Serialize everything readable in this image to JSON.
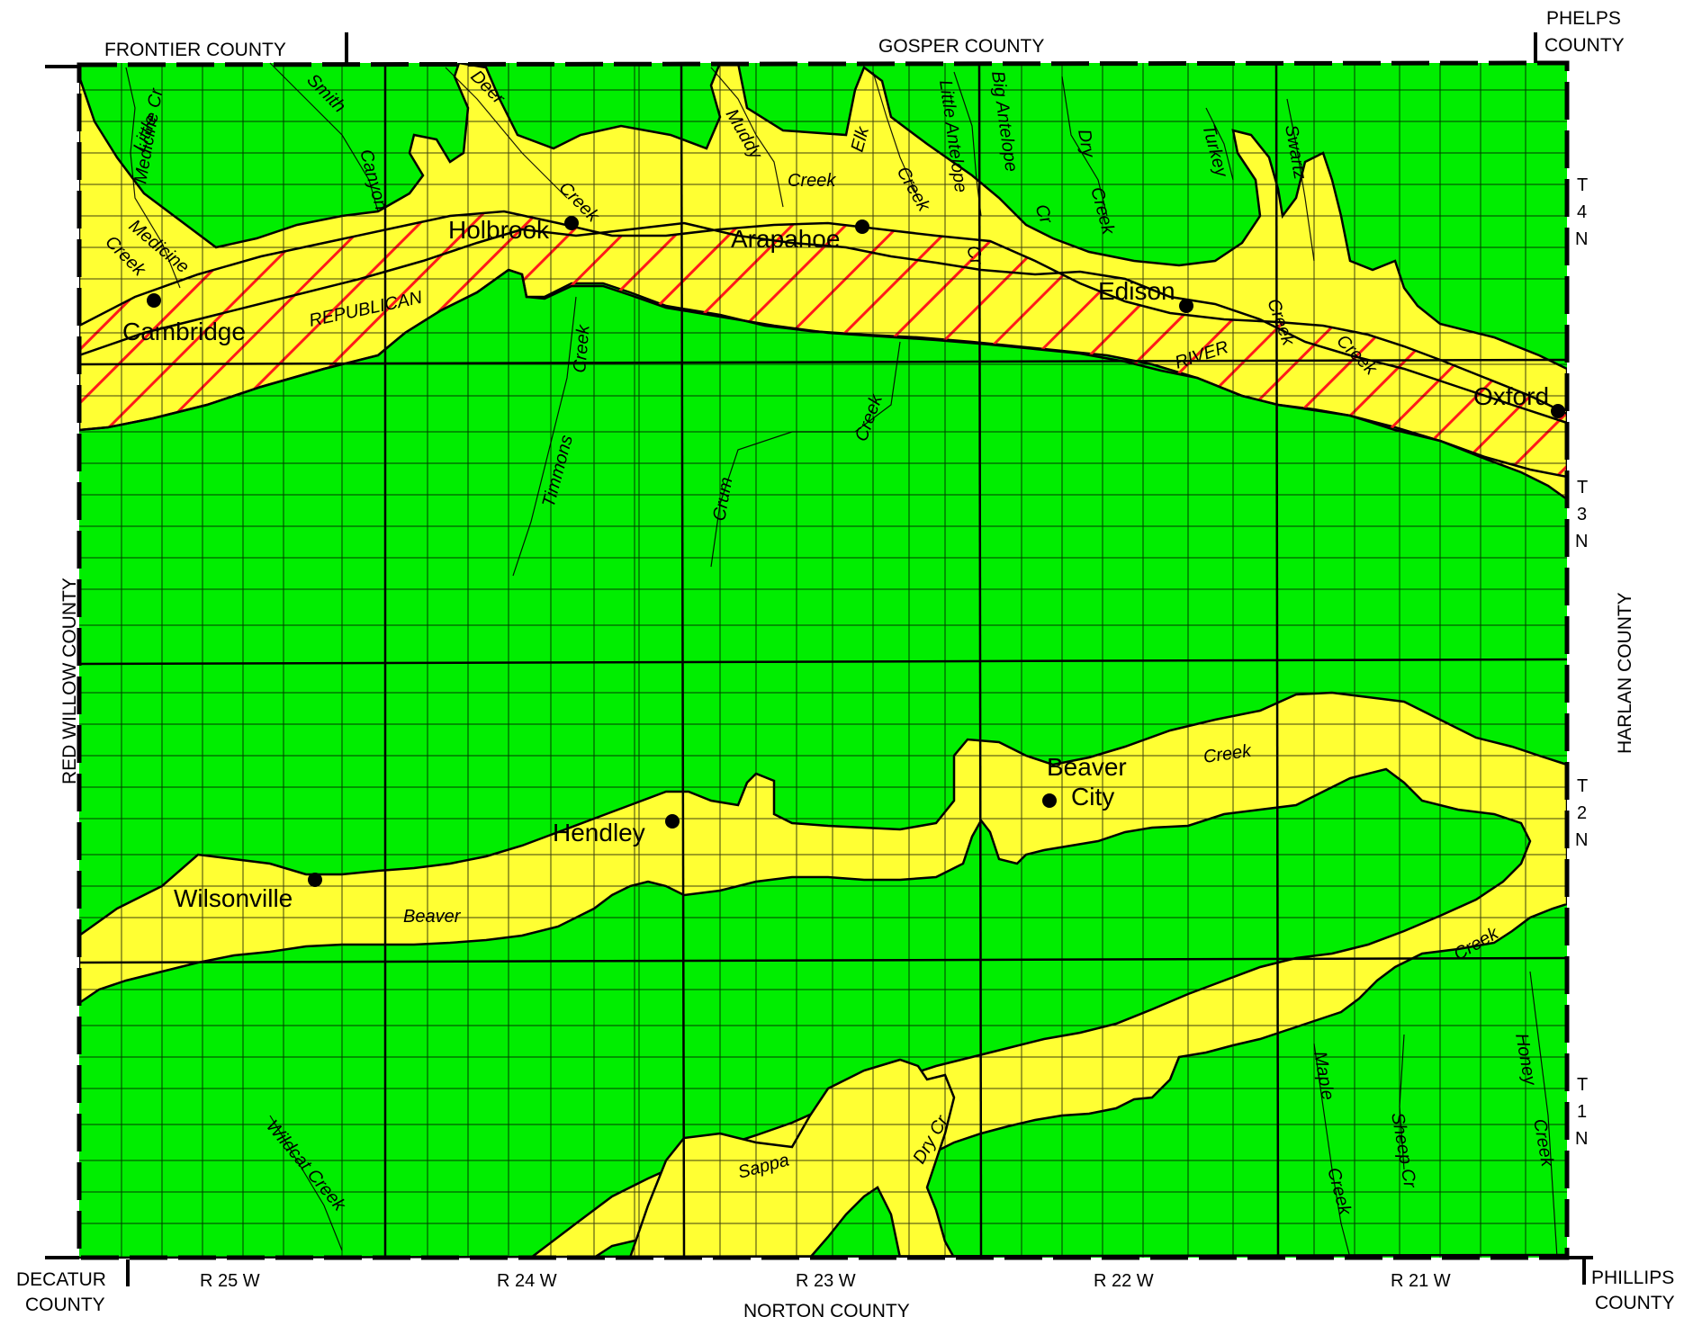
{
  "colors": {
    "upland": "#00ee00",
    "valley": "#ffff33",
    "hatch": "#ff1a1a",
    "line": "#000000",
    "background": "#ffffff"
  },
  "counties": {
    "frontier": "FRONTIER COUNTY",
    "gosper": "GOSPER COUNTY",
    "phelps_1": "PHELPS",
    "phelps_2": "COUNTY",
    "red_willow": "RED WILLOW COUNTY",
    "harlan": "HARLAN COUNTY",
    "decatur_1": "DECATUR",
    "decatur_2": "COUNTY",
    "norton": "NORTON COUNTY",
    "phillips_1": "PHILLIPS",
    "phillips_2": "COUNTY"
  },
  "towns": {
    "cambridge": "Cambridge",
    "holbrook": "Holbrook",
    "arapahoe": "Arapahoe",
    "edison": "Edison",
    "oxford": "Oxford",
    "beaver_city_1": "Beaver",
    "beaver_city_2": "City",
    "hendley": "Hendley",
    "wilsonville": "Wilsonville"
  },
  "ranges": [
    "R 25 W",
    "R 24 W",
    "R 23 W",
    "R 22 W",
    "R 21 W"
  ],
  "townships": {
    "t4n": [
      "T",
      "4",
      "N"
    ],
    "t3n": [
      "T",
      "3",
      "N"
    ],
    "t2n": [
      "T",
      "2",
      "N"
    ],
    "t1n": [
      "T",
      "1",
      "N"
    ]
  },
  "streams": {
    "little": "Little",
    "medicine_cr": "Medicine Cr",
    "medicine": "Medicine",
    "creek_cambridge": "Creek",
    "smith": "Smith",
    "canyon": "Canyon",
    "deer": "Deer",
    "creek_deer": "Creek",
    "muddy": "Muddy",
    "creek_muddy": "Creek",
    "elk": "Elk",
    "creek_elk": "Creek",
    "little_antelope": "Little Antelope",
    "cr_little_antelope": "Cr",
    "big_antelope": "Big Antelope",
    "cr_big_antelope": "Cr",
    "dry": "Dry",
    "creek_dry": "Creek",
    "turkey": "Turkey",
    "swartz": "Swartz",
    "creek_turkey": "Creek",
    "creek_swartz": "Creek",
    "republican": "REPUBLICAN",
    "river": "RIVER",
    "timmons": "Timmons",
    "creek_timmons": "Creek",
    "crum": "Crum",
    "creek_crum": "Creek",
    "beaver": "Beaver",
    "creek_beaver_1": "Creek",
    "creek_beaver_2": "Creek",
    "wildcat_creek": "Wildcat Creek",
    "sappa": "Sappa",
    "dry_cr": "Dry Cr",
    "maple": "Maple",
    "creek_maple": "Creek",
    "sheep_cr": "Sheep Cr",
    "honey": "Honey",
    "creek_honey": "Creek"
  }
}
